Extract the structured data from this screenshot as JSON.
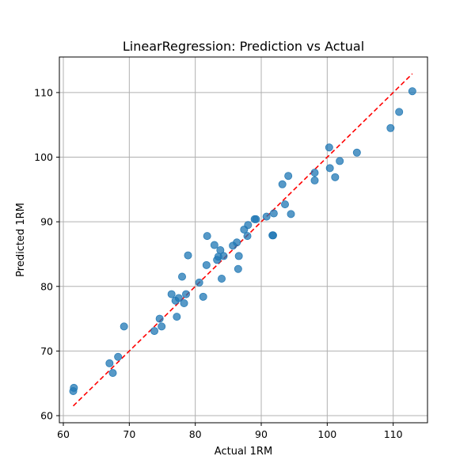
{
  "chart_data": {
    "type": "scatter",
    "title": "LinearRegression: Prediction vs Actual",
    "xlabel": "Actual 1RM",
    "ylabel": "Predicted 1RM",
    "xlim": [
      59.4,
      115.2
    ],
    "ylim": [
      58.9,
      115.5
    ],
    "xticks": [
      60,
      70,
      80,
      90,
      100,
      110
    ],
    "yticks": [
      60,
      70,
      80,
      90,
      100,
      110
    ],
    "grid": true,
    "points": [
      [
        61.5,
        63.8
      ],
      [
        61.6,
        64.3
      ],
      [
        67.0,
        68.1
      ],
      [
        67.5,
        66.6
      ],
      [
        68.3,
        69.1
      ],
      [
        69.2,
        73.8
      ],
      [
        73.8,
        73.1
      ],
      [
        74.6,
        75.0
      ],
      [
        74.9,
        73.8
      ],
      [
        76.4,
        78.8
      ],
      [
        77.0,
        77.8
      ],
      [
        77.2,
        75.3
      ],
      [
        77.5,
        78.2
      ],
      [
        78.0,
        81.5
      ],
      [
        78.3,
        77.4
      ],
      [
        78.6,
        78.8
      ],
      [
        78.9,
        84.8
      ],
      [
        80.6,
        80.6
      ],
      [
        81.2,
        78.4
      ],
      [
        81.7,
        83.3
      ],
      [
        81.8,
        87.8
      ],
      [
        82.9,
        86.4
      ],
      [
        83.3,
        84.1
      ],
      [
        83.5,
        84.6
      ],
      [
        83.8,
        85.6
      ],
      [
        84.0,
        81.2
      ],
      [
        84.3,
        84.7
      ],
      [
        85.7,
        86.3
      ],
      [
        86.3,
        86.8
      ],
      [
        86.5,
        82.7
      ],
      [
        86.6,
        84.7
      ],
      [
        87.4,
        88.8
      ],
      [
        87.9,
        87.8
      ],
      [
        88.0,
        89.5
      ],
      [
        89.0,
        90.4
      ],
      [
        89.2,
        90.4
      ],
      [
        90.8,
        90.8
      ],
      [
        91.7,
        87.9
      ],
      [
        91.8,
        87.9
      ],
      [
        91.9,
        91.3
      ],
      [
        93.2,
        95.8
      ],
      [
        93.6,
        92.7
      ],
      [
        94.1,
        97.1
      ],
      [
        94.5,
        91.2
      ],
      [
        98.1,
        97.6
      ],
      [
        98.1,
        96.4
      ],
      [
        100.3,
        101.5
      ],
      [
        100.4,
        98.3
      ],
      [
        101.2,
        96.9
      ],
      [
        101.9,
        99.4
      ],
      [
        104.5,
        100.7
      ],
      [
        109.6,
        104.5
      ],
      [
        110.9,
        107.0
      ],
      [
        112.9,
        110.2
      ]
    ],
    "reference_line": {
      "from": [
        61.5,
        61.5
      ],
      "to": [
        112.9,
        112.9
      ],
      "style": "dashed",
      "color": "#ff0000"
    },
    "colors": {
      "points": "#1f77b4",
      "grid": "#b0b0b0"
    }
  }
}
